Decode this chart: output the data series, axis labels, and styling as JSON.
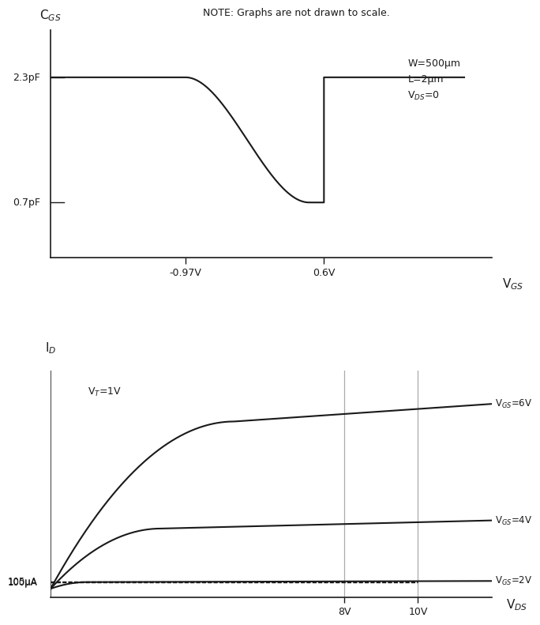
{
  "note_text": "NOTE: Graphs are not drawn to scale.",
  "cv_ylabel": "C$_{GS}$",
  "cv_xlabel": "V$_{GS}$",
  "cv_c_high": 2.3,
  "cv_c_low": 0.7,
  "cv_v1": -0.97,
  "cv_v2": 0.6,
  "cv_label_high": "2.3pF",
  "cv_label_low": "0.7pF",
  "cv_label_v1": "-0.97V",
  "cv_label_v2": "0.6V",
  "cv_params": "W=500μm\nL=2μm\nV$_{DS}$=0",
  "iv_ylabel": "I$_D$",
  "iv_xlabel": "V$_{DS}$",
  "iv_vt_label": "V$_T$=1V",
  "iv_vgs_labels": [
    "V$_{GS}$=6V",
    "V$_{GS}$=4V",
    "V$_{GS}$=2V"
  ],
  "iv_vgs_values": [
    6,
    4,
    2
  ],
  "iv_vt": 1,
  "iv_label_105": "105μA",
  "iv_label_100": "100μA",
  "iv_vds_8": "8V",
  "iv_vds_10": "10V",
  "line_color": "#1a1a1a",
  "bg_color": "#ffffff",
  "tick_color": "#aaaaaa"
}
